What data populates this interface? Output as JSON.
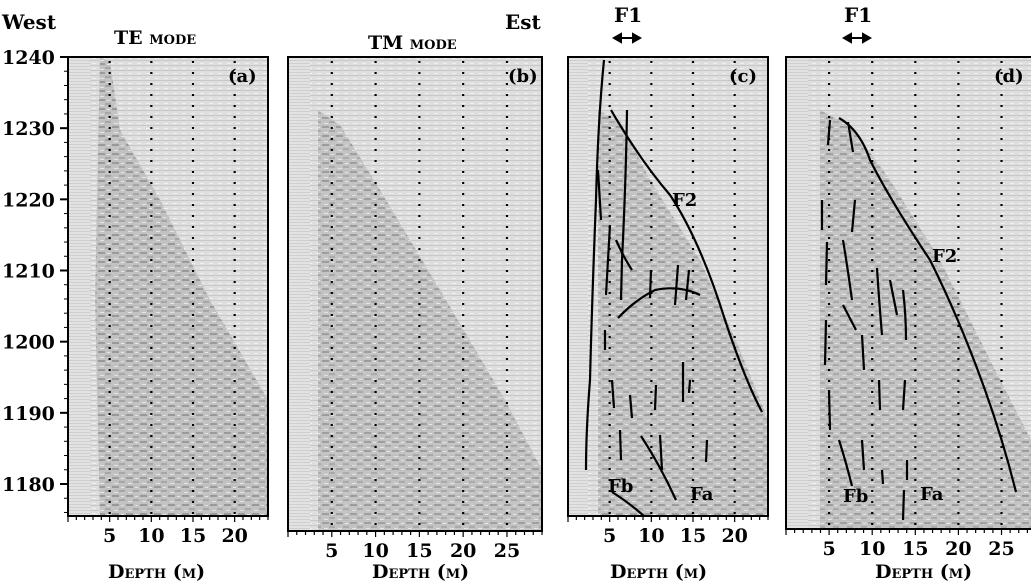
{
  "figure": {
    "left_label": "West",
    "right_label": "Est",
    "y_ticks": [
      "1240",
      "1230",
      "1220",
      "1210",
      "1200",
      "1190",
      "1180"
    ],
    "fault_marker": "F1"
  },
  "chart_data": [
    {
      "type": "other",
      "panel_label": "(a)",
      "title": "TE mode",
      "xlabel": "Depth (m)",
      "x_ticks": [
        "5",
        "10",
        "15",
        "20"
      ],
      "xlim": [
        0,
        24
      ],
      "ylim": [
        1175,
        1240
      ],
      "y_ticks": [
        1240,
        1230,
        1220,
        1210,
        1200,
        1190,
        1180
      ],
      "grid": "dotted vertical",
      "annotations": []
    },
    {
      "type": "other",
      "panel_label": "(b)",
      "title": "TM mode",
      "xlabel": "Depth (m)",
      "x_ticks": [
        "5",
        "10",
        "15",
        "20",
        "25"
      ],
      "xlim": [
        0,
        29
      ],
      "ylim": [
        1175,
        1240
      ],
      "grid": "dotted vertical",
      "annotations": []
    },
    {
      "type": "other",
      "panel_label": "(c)",
      "title": "",
      "top_marker": "F1",
      "xlabel": "Depth (m)",
      "x_ticks": [
        "5",
        "10",
        "15",
        "20"
      ],
      "xlim": [
        0,
        24
      ],
      "ylim": [
        1175,
        1240
      ],
      "grid": "dotted vertical",
      "annotations": [
        "F2",
        "Fb",
        "Fa"
      ]
    },
    {
      "type": "other",
      "panel_label": "(d)",
      "title": "",
      "top_marker": "F1",
      "xlabel": "Depth (m)",
      "x_ticks": [
        "5",
        "10",
        "15",
        "20",
        "25"
      ],
      "xlim": [
        0,
        29
      ],
      "ylim": [
        1175,
        1240
      ],
      "grid": "dotted vertical",
      "annotations": [
        "F2",
        "Fb",
        "Fa"
      ]
    }
  ]
}
